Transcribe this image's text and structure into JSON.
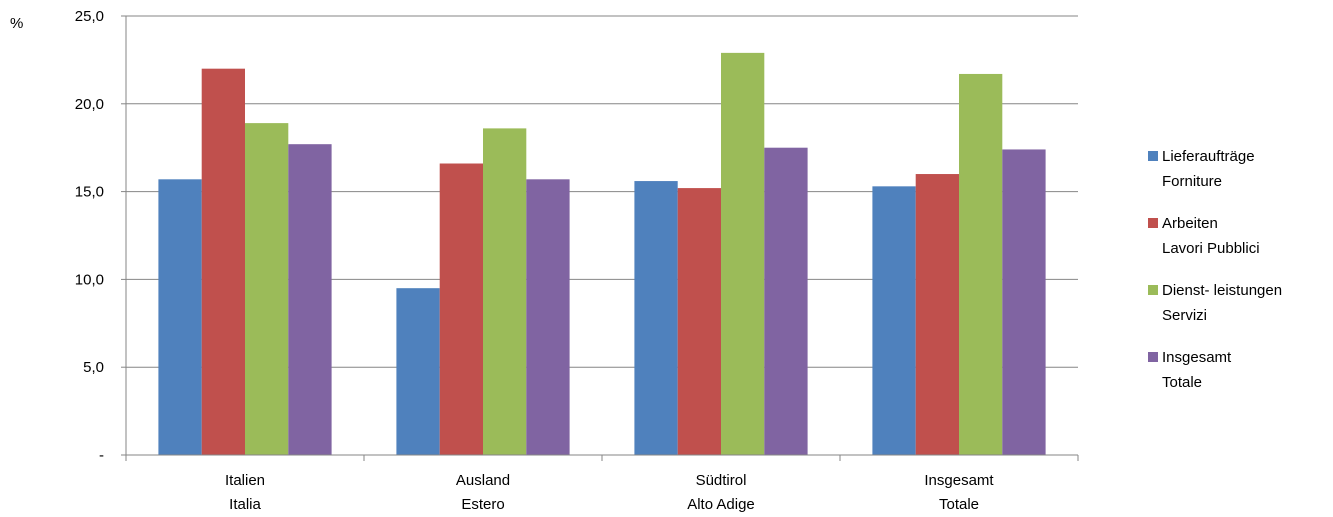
{
  "chart_data": {
    "type": "bar",
    "ylabel": "%",
    "ylim": [
      0,
      25
    ],
    "yticks": [
      {
        "value": 0,
        "label": "-"
      },
      {
        "value": 5,
        "label": "5,0"
      },
      {
        "value": 10,
        "label": "10,0"
      },
      {
        "value": 15,
        "label": "15,0"
      },
      {
        "value": 20,
        "label": "20,0"
      },
      {
        "value": 25,
        "label": "25,0"
      }
    ],
    "grid": true,
    "legend_position": "right",
    "categories": [
      {
        "line1": "Italien",
        "line2": "Italia"
      },
      {
        "line1": "Ausland",
        "line2": "Estero"
      },
      {
        "line1": "Südtirol",
        "line2": "Alto Adige"
      },
      {
        "line1": "Insgesamt",
        "line2": "Totale"
      }
    ],
    "series": [
      {
        "name_line1": "Lieferaufträge",
        "name_line2": "Forniture",
        "color": "#4f81bd",
        "values": [
          15.7,
          9.5,
          15.6,
          15.3
        ]
      },
      {
        "name_line1": "Arbeiten",
        "name_line2": "Lavori Pubblici",
        "color": "#c0504d",
        "values": [
          22.0,
          16.6,
          15.2,
          16.0
        ]
      },
      {
        "name_line1": "Dienst- leistungen",
        "name_line2": "Servizi",
        "color": "#9bbb59",
        "values": [
          18.9,
          18.6,
          22.9,
          21.7
        ]
      },
      {
        "name_line1": "Insgesamt",
        "name_line2": "Totale",
        "color": "#8064a2",
        "values": [
          17.7,
          15.7,
          17.5,
          17.4
        ]
      }
    ]
  }
}
